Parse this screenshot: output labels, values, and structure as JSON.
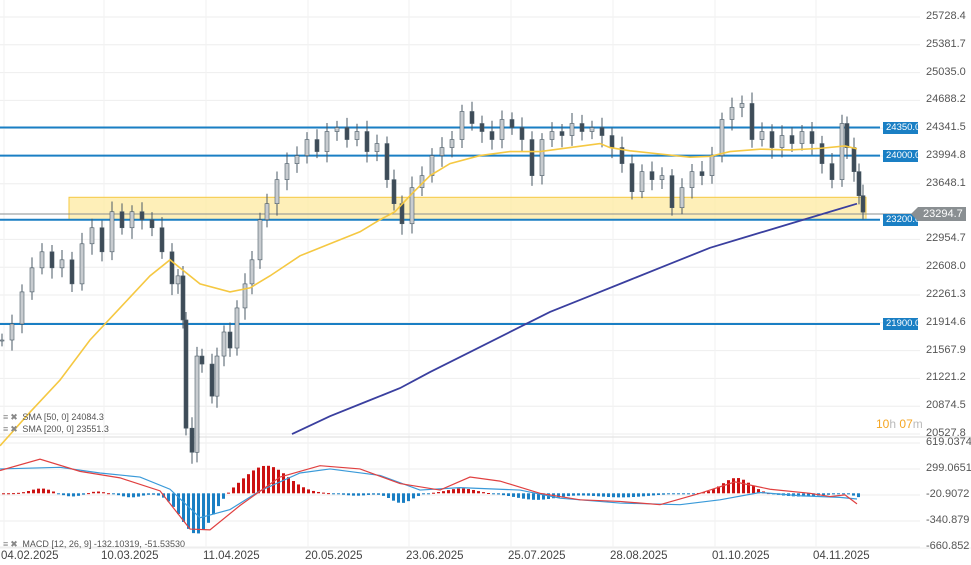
{
  "chart_data": {
    "type": "candlestick",
    "title": "",
    "y_axis": {
      "ticks": [
        "25728.4",
        "25381.7",
        "25035.0",
        "24688.2",
        "24341.5",
        "23994.8",
        "23648.1",
        "22954.7",
        "22608.0",
        "22261.3",
        "21914.6",
        "21567.9",
        "21221.2",
        "20874.5",
        "20527.8"
      ],
      "range": [
        20527.8,
        25728.4
      ]
    },
    "x_axis": {
      "ticks": [
        "04.02.2025",
        "10.03.2025",
        "11.04.2025",
        "20.05.2025",
        "23.06.2025",
        "25.07.2025",
        "28.08.2025",
        "01.10.2025",
        "04.11.2025"
      ]
    },
    "current_price": "23294.7",
    "horizontal_levels": [
      {
        "label": "24350.0",
        "value": 24350.0,
        "color": "#1a7fc4"
      },
      {
        "label": "24000.0",
        "value": 24000.0,
        "color": "#1a7fc4"
      },
      {
        "label": "23200.0",
        "value": 23200.0,
        "color": "#1a7fc4"
      },
      {
        "label": "21900.0",
        "value": 21900.0,
        "color": "#1a7fc4"
      }
    ],
    "support_zone": {
      "from": 23200,
      "to": 23480,
      "color": "#fde9a0",
      "border": "#f5c842"
    },
    "indicators": [
      {
        "name": "SMA [50, 0]",
        "value": "24084.3",
        "color": "#f5c842"
      },
      {
        "name": "SMA [200, 0]",
        "value": "23551.3",
        "color": "#3a3f9f"
      }
    ],
    "macd": {
      "name": "MACD [12, 26, 9]",
      "macd_value": "-132.10319",
      "signal_value": "-51.53530",
      "ticks": [
        "619.0374",
        "299.0651",
        "-20.9072",
        "-340.879",
        "-660.852"
      ],
      "range": [
        -660.852,
        619.0374
      ],
      "colors": {
        "macd": "#e04040",
        "signal": "#3a9ad9",
        "hist_pos": "#cc1111",
        "hist_neg": "#1a7fc4"
      }
    }
  },
  "timer": {
    "hours": "10",
    "h": "h",
    "minutes": "07",
    "m": "m"
  },
  "legend_icons": {
    "menu": "≡",
    "close": "✖"
  }
}
